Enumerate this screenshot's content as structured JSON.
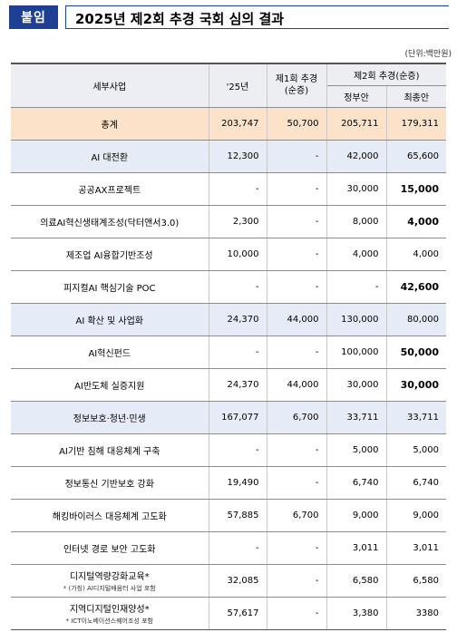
{
  "header": {
    "badge": "붙임",
    "title": "2025년 제2회 추경 국회 심의 결과"
  },
  "unit": "(단위:백만원)",
  "columns": {
    "item": "세부사업",
    "y25": "'25년",
    "first": "제1회 추경\n(순증)",
    "second": "제2회 추경(순증)",
    "gov": "정부안",
    "final": "최종안"
  },
  "rows": [
    {
      "type": "total",
      "name": "총계",
      "y25": "203,747",
      "first": "50,700",
      "gov": "205,711",
      "final": "179,311",
      "final_bold": false
    },
    {
      "type": "cat",
      "name": "AI 대전환",
      "y25": "12,300",
      "first": "-",
      "gov": "42,000",
      "final": "65,600",
      "final_bold": false
    },
    {
      "type": "item",
      "name": "공공AX프로젝트",
      "y25": "-",
      "first": "-",
      "gov": "30,000",
      "final": "15,000",
      "final_bold": true
    },
    {
      "type": "item",
      "name": "의료AI혁신생태계조성(닥터앤서3.0)",
      "y25": "2,300",
      "first": "-",
      "gov": "8,000",
      "final": "4,000",
      "final_bold": true
    },
    {
      "type": "item",
      "name": "제조업 AI융합기반조성",
      "y25": "10,000",
      "first": "-",
      "gov": "4,000",
      "final": "4,000",
      "final_bold": false
    },
    {
      "type": "item",
      "name": "피지컬AI 핵심기술 POC",
      "y25": "-",
      "first": "-",
      "gov": "-",
      "final": "42,600",
      "final_bold": true
    },
    {
      "type": "cat",
      "name": "AI 확산 및 사업화",
      "y25": "24,370",
      "first": "44,000",
      "gov": "130,000",
      "final": "80,000",
      "final_bold": false
    },
    {
      "type": "item",
      "name": "AI혁신펀드",
      "y25": "-",
      "first": "-",
      "gov": "100,000",
      "final": "50,000",
      "final_bold": true
    },
    {
      "type": "item",
      "name": "AI반도체 실증지원",
      "y25": "24,370",
      "first": "44,000",
      "gov": "30,000",
      "final": "30,000",
      "final_bold": true
    },
    {
      "type": "cat",
      "name": "정보보호·청년·민생",
      "y25": "167,077",
      "first": "6,700",
      "gov": "33,711",
      "final": "33,711",
      "final_bold": false
    },
    {
      "type": "item",
      "name": "AI기반 침해 대응체계 구축",
      "y25": "-",
      "first": "-",
      "gov": "5,000",
      "final": "5,000",
      "final_bold": false
    },
    {
      "type": "item",
      "name": "정보통신 기반보호 강화",
      "y25": "19,490",
      "first": "-",
      "gov": "6,740",
      "final": "6,740",
      "final_bold": false
    },
    {
      "type": "item",
      "name": "해킹바이러스 대응체계 고도화",
      "y25": "57,885",
      "first": "6,700",
      "gov": "9,000",
      "final": "9,000",
      "final_bold": false
    },
    {
      "type": "item",
      "name": "인터넷 경로 보안 고도화",
      "y25": "-",
      "first": "-",
      "gov": "3,011",
      "final": "3,011",
      "final_bold": false
    },
    {
      "type": "item",
      "name": "디지털역량강화교육*",
      "note": "* (가칭) AI디지털배움터 사업 포함",
      "y25": "32,085",
      "first": "-",
      "gov": "6,580",
      "final": "6,580",
      "final_bold": false
    },
    {
      "type": "item",
      "name": "지역디지털인재양성*",
      "note": "* ICT이노베이션스퀘어조성 포함",
      "y25": "57,617",
      "first": "-",
      "gov": "3,380",
      "final": "3380",
      "final_bold": false
    }
  ]
}
